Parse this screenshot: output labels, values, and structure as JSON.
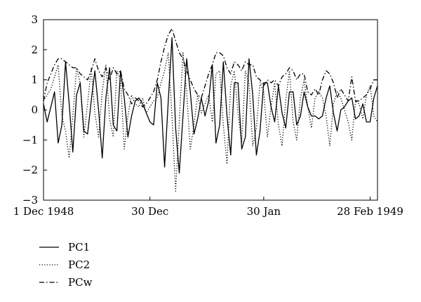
{
  "chart_data": {
    "type": "line",
    "title": "",
    "xlabel": "",
    "ylabel": "",
    "x_tick_labels": [
      "1 Dec 1948",
      "30 Dec",
      "30 Jan",
      "28 Feb 1949"
    ],
    "x_tick_dates": [
      "1948-12-01",
      "1948-12-30",
      "1949-01-30",
      "1949-02-28"
    ],
    "ylim": [
      -3,
      3
    ],
    "y_ticks": [
      -3,
      -2,
      -1,
      0,
      1,
      2,
      3
    ],
    "grid": false,
    "legend_position": "bottom-left",
    "series": [
      {
        "name": "PC1",
        "style": "solid",
        "points": [
          [
            "1948-12-01",
            0.2
          ],
          [
            "1948-12-02",
            -0.4
          ],
          [
            "1948-12-03",
            0.1
          ],
          [
            "1948-12-04",
            0.6
          ],
          [
            "1948-12-05",
            -1.1
          ],
          [
            "1948-12-06",
            -0.5
          ],
          [
            "1948-12-07",
            1.6
          ],
          [
            "1948-12-08",
            0.2
          ],
          [
            "1948-12-09",
            -1.4
          ],
          [
            "1948-12-10",
            0.5
          ],
          [
            "1948-12-11",
            0.9
          ],
          [
            "1948-12-12",
            -0.7
          ],
          [
            "1948-12-13",
            -0.8
          ],
          [
            "1948-12-14",
            0.3
          ],
          [
            "1948-12-15",
            1.3
          ],
          [
            "1948-12-16",
            0.0
          ],
          [
            "1948-12-17",
            -1.6
          ],
          [
            "1948-12-18",
            0.4
          ],
          [
            "1948-12-19",
            1.4
          ],
          [
            "1948-12-20",
            -0.5
          ],
          [
            "1948-12-21",
            -0.7
          ],
          [
            "1948-12-22",
            1.3
          ],
          [
            "1948-12-23",
            0.4
          ],
          [
            "1948-12-24",
            -0.9
          ],
          [
            "1948-12-25",
            -0.2
          ],
          [
            "1948-12-26",
            0.3
          ],
          [
            "1948-12-27",
            0.4
          ],
          [
            "1948-12-28",
            0.2
          ],
          [
            "1948-12-29",
            -0.1
          ],
          [
            "1948-12-30",
            -0.4
          ],
          [
            "1948-12-31",
            -0.5
          ],
          [
            "1949-01-01",
            0.9
          ],
          [
            "1949-01-02",
            0.4
          ],
          [
            "1949-01-03",
            -1.9
          ],
          [
            "1949-01-04",
            0.3
          ],
          [
            "1949-01-05",
            2.4
          ],
          [
            "1949-01-06",
            -0.6
          ],
          [
            "1949-01-07",
            -2.1
          ],
          [
            "1949-01-08",
            -0.2
          ],
          [
            "1949-01-09",
            1.7
          ],
          [
            "1949-01-10",
            0.6
          ],
          [
            "1949-01-11",
            -0.8
          ],
          [
            "1949-01-12",
            -0.3
          ],
          [
            "1949-01-13",
            0.4
          ],
          [
            "1949-01-14",
            -0.2
          ],
          [
            "1949-01-15",
            0.3
          ],
          [
            "1949-01-16",
            1.5
          ],
          [
            "1949-01-17",
            -1.1
          ],
          [
            "1949-01-18",
            -0.5
          ],
          [
            "1949-01-19",
            1.6
          ],
          [
            "1949-01-20",
            -0.2
          ],
          [
            "1949-01-21",
            -1.5
          ],
          [
            "1949-01-22",
            0.9
          ],
          [
            "1949-01-23",
            0.9
          ],
          [
            "1949-01-24",
            -1.3
          ],
          [
            "1949-01-25",
            -0.9
          ],
          [
            "1949-01-26",
            1.7
          ],
          [
            "1949-01-27",
            0.5
          ],
          [
            "1949-01-28",
            -1.5
          ],
          [
            "1949-01-29",
            -0.7
          ],
          [
            "1949-01-30",
            0.9
          ],
          [
            "1949-01-31",
            0.9
          ],
          [
            "1949-02-01",
            0.1
          ],
          [
            "1949-02-02",
            -0.4
          ],
          [
            "1949-02-03",
            0.8
          ],
          [
            "1949-02-04",
            -0.1
          ],
          [
            "1949-02-05",
            -0.6
          ],
          [
            "1949-02-06",
            0.6
          ],
          [
            "1949-02-07",
            0.6
          ],
          [
            "1949-02-08",
            -0.5
          ],
          [
            "1949-02-09",
            -0.2
          ],
          [
            "1949-02-10",
            0.6
          ],
          [
            "1949-02-11",
            0.1
          ],
          [
            "1949-02-12",
            -0.2
          ],
          [
            "1949-02-13",
            -0.2
          ],
          [
            "1949-02-14",
            -0.3
          ],
          [
            "1949-02-15",
            -0.2
          ],
          [
            "1949-02-16",
            0.4
          ],
          [
            "1949-02-17",
            0.8
          ],
          [
            "1949-02-18",
            -0.1
          ],
          [
            "1949-02-19",
            -0.7
          ],
          [
            "1949-02-20",
            0.0
          ],
          [
            "1949-02-21",
            0.1
          ],
          [
            "1949-02-22",
            0.3
          ],
          [
            "1949-02-23",
            0.4
          ],
          [
            "1949-02-24",
            -0.3
          ],
          [
            "1949-02-25",
            -0.2
          ],
          [
            "1949-02-26",
            0.2
          ],
          [
            "1949-02-27",
            -0.4
          ],
          [
            "1949-02-28",
            -0.4
          ],
          [
            "1949-03-01",
            0.4
          ],
          [
            "1949-03-02",
            0.8
          ]
        ]
      },
      {
        "name": "PC2",
        "style": "dotted",
        "points": [
          [
            "1948-12-01",
            0.3
          ],
          [
            "1948-12-02",
            0.5
          ],
          [
            "1948-12-03",
            0.7
          ],
          [
            "1948-12-04",
            1.1
          ],
          [
            "1948-12-05",
            1.5
          ],
          [
            "1948-12-06",
            -0.2
          ],
          [
            "1948-12-07",
            -0.7
          ],
          [
            "1948-12-08",
            -1.6
          ],
          [
            "1948-12-09",
            -0.2
          ],
          [
            "1948-12-10",
            1.4
          ],
          [
            "1948-12-11",
            0.9
          ],
          [
            "1948-12-12",
            -0.9
          ],
          [
            "1948-12-13",
            0.2
          ],
          [
            "1948-12-14",
            1.4
          ],
          [
            "1948-12-15",
            -0.1
          ],
          [
            "1948-12-16",
            -0.9
          ],
          [
            "1948-12-17",
            0.6
          ],
          [
            "1948-12-18",
            1.5
          ],
          [
            "1948-12-19",
            -0.3
          ],
          [
            "1948-12-20",
            -0.9
          ],
          [
            "1948-12-21",
            1.3
          ],
          [
            "1948-12-22",
            1.0
          ],
          [
            "1948-12-23",
            -1.3
          ],
          [
            "1948-12-24",
            -0.2
          ],
          [
            "1948-12-25",
            0.5
          ],
          [
            "1948-12-26",
            0.2
          ],
          [
            "1948-12-27",
            0.1
          ],
          [
            "1948-12-28",
            0.4
          ],
          [
            "1948-12-29",
            -0.1
          ],
          [
            "1948-12-30",
            0.1
          ],
          [
            "1948-12-31",
            0.3
          ],
          [
            "1949-01-01",
            0.4
          ],
          [
            "1949-01-02",
            0.9
          ],
          [
            "1949-01-03",
            1.3
          ],
          [
            "1949-01-04",
            1.9
          ],
          [
            "1949-01-05",
            -0.2
          ],
          [
            "1949-01-06",
            -2.7
          ],
          [
            "1949-01-07",
            -0.4
          ],
          [
            "1949-01-08",
            1.9
          ],
          [
            "1949-01-09",
            0.6
          ],
          [
            "1949-01-10",
            -1.3
          ],
          [
            "1949-01-11",
            -0.5
          ],
          [
            "1949-01-12",
            0.5
          ],
          [
            "1949-01-13",
            -0.1
          ],
          [
            "1949-01-14",
            0.2
          ],
          [
            "1949-01-15",
            0.5
          ],
          [
            "1949-01-16",
            -0.4
          ],
          [
            "1949-01-17",
            1.2
          ],
          [
            "1949-01-18",
            1.3
          ],
          [
            "1949-01-19",
            -0.5
          ],
          [
            "1949-01-20",
            -1.8
          ],
          [
            "1949-01-21",
            0.8
          ],
          [
            "1949-01-22",
            1.3
          ],
          [
            "1949-01-23",
            -0.1
          ],
          [
            "1949-01-24",
            -1.1
          ],
          [
            "1949-01-25",
            1.3
          ],
          [
            "1949-01-26",
            0.9
          ],
          [
            "1949-01-27",
            -1.2
          ],
          [
            "1949-01-28",
            -0.6
          ],
          [
            "1949-01-29",
            0.9
          ],
          [
            "1949-01-30",
            0.6
          ],
          [
            "1949-01-31",
            -0.9
          ],
          [
            "1949-02-01",
            0.1
          ],
          [
            "1949-02-02",
            0.9
          ],
          [
            "1949-02-03",
            -0.5
          ],
          [
            "1949-02-04",
            -1.2
          ],
          [
            "1949-02-05",
            0.3
          ],
          [
            "1949-02-06",
            1.3
          ],
          [
            "1949-02-07",
            -0.4
          ],
          [
            "1949-02-08",
            -1.0
          ],
          [
            "1949-02-09",
            0.4
          ],
          [
            "1949-02-10",
            1.0
          ],
          [
            "1949-02-11",
            0.1
          ],
          [
            "1949-02-12",
            -0.6
          ],
          [
            "1949-02-13",
            0.4
          ],
          [
            "1949-02-14",
            0.6
          ],
          [
            "1949-02-15",
            0.4
          ],
          [
            "1949-02-16",
            -0.2
          ],
          [
            "1949-02-17",
            -1.2
          ],
          [
            "1949-02-18",
            0.2
          ],
          [
            "1949-02-19",
            0.6
          ],
          [
            "1949-02-20",
            0.4
          ],
          [
            "1949-02-21",
            0.0
          ],
          [
            "1949-02-22",
            -0.4
          ],
          [
            "1949-02-23",
            -1.0
          ],
          [
            "1949-02-24",
            0.3
          ],
          [
            "1949-02-25",
            0.2
          ],
          [
            "1949-02-26",
            -0.3
          ],
          [
            "1949-02-27",
            0.5
          ],
          [
            "1949-02-28",
            0.8
          ],
          [
            "1949-03-01",
            -0.2
          ],
          [
            "1949-03-02",
            -0.4
          ]
        ]
      },
      {
        "name": "PCw",
        "style": "dashdot",
        "points": [
          [
            "1948-12-01",
            0.3
          ],
          [
            "1948-12-02",
            0.9
          ],
          [
            "1948-12-03",
            1.2
          ],
          [
            "1948-12-04",
            1.5
          ],
          [
            "1948-12-05",
            1.7
          ],
          [
            "1948-12-06",
            1.7
          ],
          [
            "1948-12-07",
            1.6
          ],
          [
            "1948-12-08",
            1.5
          ],
          [
            "1948-12-09",
            1.4
          ],
          [
            "1948-12-10",
            1.4
          ],
          [
            "1948-12-11",
            1.2
          ],
          [
            "1948-12-12",
            1.1
          ],
          [
            "1948-12-13",
            1.0
          ],
          [
            "1948-12-14",
            1.3
          ],
          [
            "1948-12-15",
            1.7
          ],
          [
            "1948-12-16",
            1.3
          ],
          [
            "1948-12-17",
            1.1
          ],
          [
            "1948-12-18",
            1.4
          ],
          [
            "1948-12-19",
            1.0
          ],
          [
            "1948-12-20",
            1.4
          ],
          [
            "1948-12-21",
            1.2
          ],
          [
            "1948-12-22",
            1.3
          ],
          [
            "1948-12-23",
            0.7
          ],
          [
            "1948-12-24",
            0.5
          ],
          [
            "1948-12-25",
            0.2
          ],
          [
            "1948-12-26",
            0.4
          ],
          [
            "1948-12-27",
            0.3
          ],
          [
            "1948-12-28",
            0.1
          ],
          [
            "1948-12-29",
            0.2
          ],
          [
            "1948-12-30",
            0.4
          ],
          [
            "1948-12-31",
            0.6
          ],
          [
            "1949-01-01",
            1.0
          ],
          [
            "1949-01-02",
            1.6
          ],
          [
            "1949-01-03",
            2.1
          ],
          [
            "1949-01-04",
            2.5
          ],
          [
            "1949-01-05",
            2.7
          ],
          [
            "1949-01-06",
            2.3
          ],
          [
            "1949-01-07",
            1.9
          ],
          [
            "1949-01-08",
            1.7
          ],
          [
            "1949-01-09",
            1.3
          ],
          [
            "1949-01-10",
            1.0
          ],
          [
            "1949-01-11",
            0.7
          ],
          [
            "1949-01-12",
            0.5
          ],
          [
            "1949-01-13",
            0.4
          ],
          [
            "1949-01-14",
            0.8
          ],
          [
            "1949-01-15",
            1.2
          ],
          [
            "1949-01-16",
            1.5
          ],
          [
            "1949-01-17",
            1.9
          ],
          [
            "1949-01-18",
            1.9
          ],
          [
            "1949-01-19",
            1.8
          ],
          [
            "1949-01-20",
            1.4
          ],
          [
            "1949-01-21",
            1.2
          ],
          [
            "1949-01-22",
            1.6
          ],
          [
            "1949-01-23",
            1.5
          ],
          [
            "1949-01-24",
            1.3
          ],
          [
            "1949-01-25",
            1.6
          ],
          [
            "1949-01-26",
            1.5
          ],
          [
            "1949-01-27",
            1.5
          ],
          [
            "1949-01-28",
            1.1
          ],
          [
            "1949-01-29",
            1.0
          ],
          [
            "1949-01-30",
            0.8
          ],
          [
            "1949-01-31",
            1.0
          ],
          [
            "1949-02-01",
            0.9
          ],
          [
            "1949-02-02",
            1.0
          ],
          [
            "1949-02-03",
            0.8
          ],
          [
            "1949-02-04",
            1.1
          ],
          [
            "1949-02-05",
            1.2
          ],
          [
            "1949-02-06",
            1.4
          ],
          [
            "1949-02-07",
            1.3
          ],
          [
            "1949-02-08",
            1.0
          ],
          [
            "1949-02-09",
            1.2
          ],
          [
            "1949-02-10",
            1.2
          ],
          [
            "1949-02-11",
            0.6
          ],
          [
            "1949-02-12",
            0.5
          ],
          [
            "1949-02-13",
            0.7
          ],
          [
            "1949-02-14",
            0.5
          ],
          [
            "1949-02-15",
            1.0
          ],
          [
            "1949-02-16",
            1.3
          ],
          [
            "1949-02-17",
            1.2
          ],
          [
            "1949-02-18",
            0.9
          ],
          [
            "1949-02-19",
            0.4
          ],
          [
            "1949-02-20",
            0.7
          ],
          [
            "1949-02-21",
            0.5
          ],
          [
            "1949-02-22",
            0.3
          ],
          [
            "1949-02-23",
            1.1
          ],
          [
            "1949-02-24",
            0.3
          ],
          [
            "1949-02-25",
            0.3
          ],
          [
            "1949-02-26",
            0.4
          ],
          [
            "1949-02-27",
            0.5
          ],
          [
            "1949-02-28",
            0.7
          ],
          [
            "1949-03-01",
            1.0
          ],
          [
            "1949-03-02",
            1.0
          ]
        ]
      }
    ]
  }
}
